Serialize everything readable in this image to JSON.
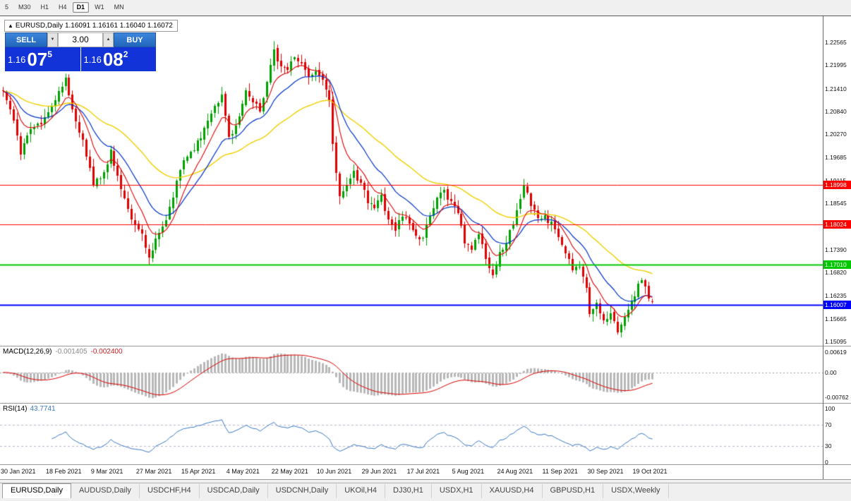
{
  "toolbar": {
    "buttons": [
      {
        "label": "5",
        "active": false
      },
      {
        "label": "M30",
        "active": false
      },
      {
        "label": "H1",
        "active": false
      },
      {
        "label": "H4",
        "active": false
      },
      {
        "label": "D1",
        "active": true
      },
      {
        "label": "W1",
        "active": false
      },
      {
        "label": "MN",
        "active": false
      }
    ]
  },
  "symbol_header": {
    "collapse_icon": "▲",
    "title": "EURUSD,Daily",
    "ohlc": "1.16091 1.16161 1.16040 1.16072"
  },
  "trade_panel": {
    "sell_label": "SELL",
    "buy_label": "BUY",
    "volume": "3.00",
    "spin_down": "▼",
    "spin_up": "▲",
    "sell_price": {
      "small": "1.16",
      "big": "07",
      "sup": "5"
    },
    "buy_price": {
      "small": "1.16",
      "big": "08",
      "sup": "2"
    },
    "panel_color": "#1233d8",
    "button_color_top": "#3c86dc",
    "button_color_bottom": "#2166bb"
  },
  "chart_data": [
    {
      "name": "price",
      "type": "candlestick",
      "title": "EURUSD,Daily",
      "colors": {
        "up": "#00a000",
        "down": "#e00000",
        "bg": "#ffffff"
      },
      "y_axis_labels": [
        "1.22565",
        "1.21995",
        "1.21410",
        "1.20840",
        "1.20270",
        "1.19685",
        "1.19115",
        "1.18545",
        "1.17975",
        "1.17390",
        "1.16820",
        "1.16235",
        "1.15665",
        "1.15095"
      ],
      "levels": [
        {
          "price": 1.18998,
          "label": "1.18998",
          "color": "#ff0000",
          "width": 1
        },
        {
          "price": 1.18024,
          "label": "1.18024",
          "color": "#ff0000",
          "width": 1
        },
        {
          "price": 1.1701,
          "label": "1.17010",
          "color": "#00c800",
          "width": 2
        },
        {
          "price": 1.16007,
          "label": "1.16007",
          "color": "#0000ff",
          "width": 2
        }
      ],
      "moving_averages": [
        {
          "period": 45,
          "color": "#f0d000",
          "width": 1.4
        },
        {
          "period": 17,
          "color": "#0033cc",
          "width": 1.2
        },
        {
          "period": 8,
          "color": "#dd0000",
          "width": 1.1
        }
      ],
      "series": {
        "count": 188,
        "anchors": [
          [
            0,
            1.2135
          ],
          [
            3,
            1.2062
          ],
          [
            5,
            1.1976
          ],
          [
            8,
            1.2041
          ],
          [
            11,
            1.2055
          ],
          [
            13,
            1.2086
          ],
          [
            16,
            1.2128
          ],
          [
            18,
            1.2163
          ],
          [
            20,
            1.2092
          ],
          [
            23,
            1.2012
          ],
          [
            26,
            1.1907
          ],
          [
            29,
            1.1932
          ],
          [
            31,
            1.1986
          ],
          [
            34,
            1.1892
          ],
          [
            37,
            1.1812
          ],
          [
            40,
            1.1782
          ],
          [
            42,
            1.1716
          ],
          [
            44,
            1.1762
          ],
          [
            47,
            1.1816
          ],
          [
            50,
            1.1902
          ],
          [
            52,
            1.1966
          ],
          [
            55,
            1.1992
          ],
          [
            58,
            1.2042
          ],
          [
            61,
            1.2096
          ],
          [
            63,
            1.2126
          ],
          [
            65,
            1.2016
          ],
          [
            68,
            1.2072
          ],
          [
            70,
            1.2136
          ],
          [
            72,
            1.2106
          ],
          [
            74,
            1.2082
          ],
          [
            76,
            1.2162
          ],
          [
            78,
            1.2232
          ],
          [
            80,
            1.2196
          ],
          [
            82,
            1.2186
          ],
          [
            84,
            1.2226
          ],
          [
            86,
            1.2206
          ],
          [
            88,
            1.2172
          ],
          [
            90,
            1.2186
          ],
          [
            92,
            1.2156
          ],
          [
            94,
            1.2116
          ],
          [
            95,
            1.1996
          ],
          [
            96,
            1.1932
          ],
          [
            97,
            1.1866
          ],
          [
            99,
            1.1896
          ],
          [
            101,
            1.1932
          ],
          [
            103,
            1.1906
          ],
          [
            105,
            1.1862
          ],
          [
            107,
            1.1846
          ],
          [
            109,
            1.1872
          ],
          [
            111,
            1.1816
          ],
          [
            113,
            1.1792
          ],
          [
            115,
            1.1826
          ],
          [
            117,
            1.1806
          ],
          [
            119,
            1.1776
          ],
          [
            121,
            1.1772
          ],
          [
            123,
            1.1822
          ],
          [
            125,
            1.1866
          ],
          [
            127,
            1.1886
          ],
          [
            129,
            1.1856
          ],
          [
            131,
            1.1832
          ],
          [
            133,
            1.1756
          ],
          [
            135,
            1.1742
          ],
          [
            137,
            1.1786
          ],
          [
            139,
            1.1716
          ],
          [
            141,
            1.1676
          ],
          [
            143,
            1.1732
          ],
          [
            145,
            1.1756
          ],
          [
            147,
            1.1806
          ],
          [
            150,
            1.1896
          ],
          [
            152,
            1.1856
          ],
          [
            154,
            1.1822
          ],
          [
            156,
            1.1816
          ],
          [
            158,
            1.1806
          ],
          [
            160,
            1.1766
          ],
          [
            162,
            1.1732
          ],
          [
            164,
            1.1692
          ],
          [
            166,
            1.1702
          ],
          [
            168,
            1.1642
          ],
          [
            169,
            1.1582
          ],
          [
            171,
            1.1602
          ],
          [
            173,
            1.1562
          ],
          [
            175,
            1.1586
          ],
          [
            177,
            1.1532
          ],
          [
            179,
            1.1572
          ],
          [
            181,
            1.1606
          ],
          [
            183,
            1.1648
          ],
          [
            184,
            1.1666
          ],
          [
            185,
            1.1642
          ],
          [
            186,
            1.1616
          ],
          [
            187,
            1.16072
          ]
        ],
        "last_candle": {
          "open": 1.16091,
          "high": 1.16161,
          "low": 1.1604,
          "close": 1.16072
        }
      },
      "x_axis": [
        {
          "label": "30 Jan 2021",
          "index": 0
        },
        {
          "label": "18 Feb 2021",
          "index": 13
        },
        {
          "label": "9 Mar 2021",
          "index": 26
        },
        {
          "label": "27 Mar 2021",
          "index": 39
        },
        {
          "label": "15 Apr 2021",
          "index": 52
        },
        {
          "label": "4 May 2021",
          "index": 65
        },
        {
          "label": "22 May 2021",
          "index": 78
        },
        {
          "label": "10 Jun 2021",
          "index": 91
        },
        {
          "label": "29 Jun 2021",
          "index": 104
        },
        {
          "label": "17 Jul 2021",
          "index": 117
        },
        {
          "label": "5 Aug 2021",
          "index": 130
        },
        {
          "label": "24 Aug 2021",
          "index": 143
        },
        {
          "label": "11 Sep 2021",
          "index": 156
        },
        {
          "label": "30 Sep 2021",
          "index": 169
        },
        {
          "label": "19 Oct 2021",
          "index": 182
        }
      ]
    },
    {
      "name": "macd",
      "type": "bar",
      "title": "MACD(12,26,9)",
      "value_main": "-0.001405",
      "value_signal": "-0.002400",
      "fast": 12,
      "slow": 26,
      "signal": 9,
      "hist_color": "#b8b8b8",
      "signal_color": "#dd0000",
      "axis": [
        {
          "label": "0.00619",
          "value": 0.00619
        },
        {
          "label": "0.00",
          "value": 0.0
        },
        {
          "label": "-0.00762",
          "value": -0.00762
        }
      ]
    },
    {
      "name": "rsi",
      "type": "line",
      "title": "RSI(14)",
      "value": "43.7741",
      "period": 14,
      "color": "#3a78c3",
      "levels": [
        {
          "label": "100",
          "value": 100,
          "dashed": false
        },
        {
          "label": "70",
          "value": 70,
          "dashed": true
        },
        {
          "label": "30",
          "value": 30,
          "dashed": true
        },
        {
          "label": "0",
          "value": 0,
          "dashed": false
        }
      ]
    }
  ],
  "tabs": [
    {
      "label": "EURUSD,Daily",
      "active": true
    },
    {
      "label": "AUDUSD,Daily",
      "active": false
    },
    {
      "label": "USDCHF,H4",
      "active": false
    },
    {
      "label": "USDCAD,Daily",
      "active": false
    },
    {
      "label": "USDCNH,Daily",
      "active": false
    },
    {
      "label": "UKOil,H4",
      "active": false
    },
    {
      "label": "DJ30,H1",
      "active": false
    },
    {
      "label": "USDX,H1",
      "active": false
    },
    {
      "label": "XAUUSD,H4",
      "active": false
    },
    {
      "label": "GBPUSD,H1",
      "active": false
    },
    {
      "label": "USDX,Weekly",
      "active": false
    }
  ]
}
